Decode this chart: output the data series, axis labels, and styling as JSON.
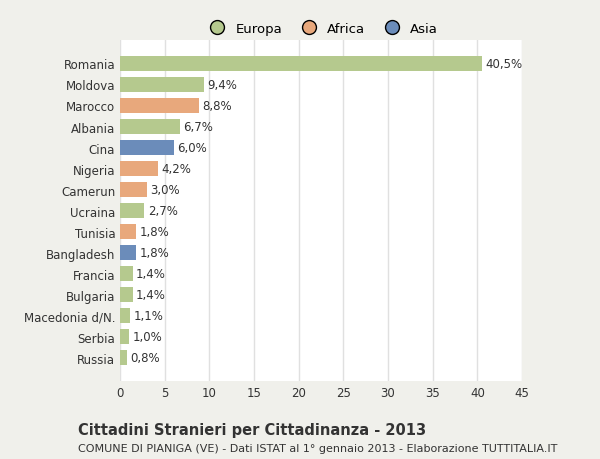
{
  "categories": [
    "Romania",
    "Moldova",
    "Marocco",
    "Albania",
    "Cina",
    "Nigeria",
    "Camerun",
    "Ucraina",
    "Tunisia",
    "Bangladesh",
    "Francia",
    "Bulgaria",
    "Macedonia d/N.",
    "Serbia",
    "Russia"
  ],
  "values": [
    40.5,
    9.4,
    8.8,
    6.7,
    6.0,
    4.2,
    3.0,
    2.7,
    1.8,
    1.8,
    1.4,
    1.4,
    1.1,
    1.0,
    0.8
  ],
  "labels": [
    "40,5%",
    "9,4%",
    "8,8%",
    "6,7%",
    "6,0%",
    "4,2%",
    "3,0%",
    "2,7%",
    "1,8%",
    "1,8%",
    "1,4%",
    "1,4%",
    "1,1%",
    "1,0%",
    "0,8%"
  ],
  "continents": [
    "Europa",
    "Europa",
    "Africa",
    "Europa",
    "Asia",
    "Africa",
    "Africa",
    "Europa",
    "Africa",
    "Asia",
    "Europa",
    "Europa",
    "Europa",
    "Europa",
    "Europa"
  ],
  "colors": {
    "Europa": "#b5c98e",
    "Africa": "#e8a87c",
    "Asia": "#6b8cba"
  },
  "title": "Cittadini Stranieri per Cittadinanza - 2013",
  "subtitle": "COMUNE DI PIANIGA (VE) - Dati ISTAT al 1° gennaio 2013 - Elaborazione TUTTITALIA.IT",
  "xlim": [
    0,
    45
  ],
  "xticks": [
    0,
    5,
    10,
    15,
    20,
    25,
    30,
    35,
    40,
    45
  ],
  "background_color": "#f0f0eb",
  "plot_bg_color": "#ffffff",
  "grid_color": "#e0e0e0",
  "text_color": "#333333",
  "label_fontsize": 8.5,
  "tick_fontsize": 8.5,
  "title_fontsize": 10.5,
  "subtitle_fontsize": 8.0,
  "bar_height": 0.72,
  "bar_alpha": 1.0
}
